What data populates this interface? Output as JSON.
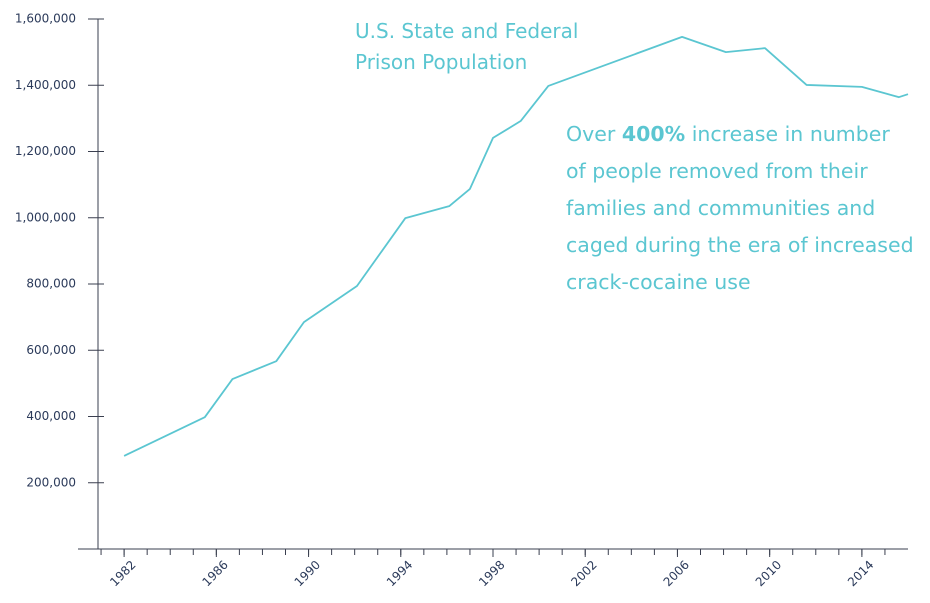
{
  "chart_data": {
    "type": "line",
    "title": "U.S. State and Federal Prison Population",
    "annotation": [
      "Over ",
      "400%",
      " increase in number of people removed from their families and communities and caged during the era of increased crack-cocaine use"
    ],
    "x": [
      1982.0,
      1985.5,
      1986.7,
      1988.6,
      1989.8,
      1992.1,
      1994.2,
      1996.1,
      1997.0,
      1998.0,
      1999.2,
      2000.4,
      2006.2,
      2008.1,
      2009.8,
      2011.6,
      2014.0,
      2015.6,
      2016.0
    ],
    "series": [
      {
        "name": "Prison Population",
        "color": "#5bc6d1",
        "values": [
          281000,
          398000,
          513000,
          567000,
          685000,
          794000,
          999000,
          1035000,
          1087000,
          1241000,
          1292000,
          1398000,
          1546000,
          1500000,
          1512000,
          1401000,
          1395000,
          1364000,
          1373000
        ]
      }
    ],
    "xlim": [
      1980,
      2016
    ],
    "xticks": [
      1982,
      1986,
      1990,
      1994,
      1998,
      2002,
      2006,
      2010,
      2014
    ],
    "xminorticks": [
      1981,
      1982,
      1983,
      1984,
      1985,
      1986,
      1987,
      1988,
      1989,
      1990,
      1991,
      1992,
      1993,
      1994,
      1995,
      1996,
      1997,
      1998,
      1999,
      2000,
      2001,
      2002,
      2003,
      2004,
      2005,
      2006,
      2007,
      2008,
      2009,
      2010,
      2011,
      2012,
      2013,
      2014,
      2015
    ],
    "ylim": [
      0,
      1600000
    ],
    "yticks": [
      {
        "value": 200000,
        "label": "200,000"
      },
      {
        "value": 400000,
        "label": "400,000"
      },
      {
        "value": 600000,
        "label": "600,000"
      },
      {
        "value": 800000,
        "label": "800,000"
      },
      {
        "value": 1000000,
        "label": "1,000,000"
      },
      {
        "value": 1200000,
        "label": "1,200,000"
      },
      {
        "value": 1400000,
        "label": "1,400,000"
      },
      {
        "value": 1600000,
        "label": "1,600,000"
      }
    ],
    "grid": false
  }
}
